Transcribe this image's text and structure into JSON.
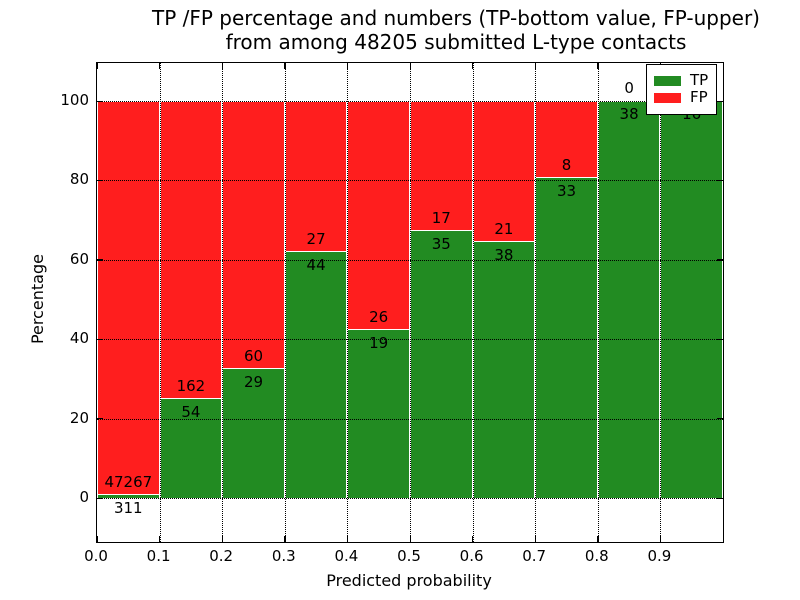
{
  "title": {
    "line1": "TP /FP percentage and numbers (TP-bottom value, FP-upper)",
    "line2": "from among 48205 submitted L-type contacts"
  },
  "axes": {
    "xlabel": "Predicted probability",
    "ylabel": "Percentage",
    "x_tick_labels": [
      "0.0",
      "0.1",
      "0.2",
      "0.3",
      "0.4",
      "0.5",
      "0.6",
      "0.7",
      "0.8",
      "0.9"
    ],
    "y_tick_labels": [
      "0",
      "20",
      "40",
      "60",
      "80",
      "100"
    ]
  },
  "legend": {
    "items": [
      {
        "label": "TP",
        "color": "#228B22"
      },
      {
        "label": "FP",
        "color": "#FF1E1E"
      }
    ]
  },
  "chart_data": {
    "type": "bar",
    "stacked": true,
    "normalized": "each bin scaled to 100%, segment heights = count/(TP+FP) of bin",
    "title": "TP /FP percentage and numbers (TP-bottom value, FP-upper) from among 48205 submitted L-type contacts",
    "xlabel": "Predicted probability",
    "ylabel": "Percentage",
    "xlim": [
      0.0,
      1.0
    ],
    "ylim": [
      0,
      100
    ],
    "bin_width": 0.1,
    "bin_starts": [
      0.0,
      0.1,
      0.2,
      0.3,
      0.4,
      0.5,
      0.6,
      0.7,
      0.8,
      0.9
    ],
    "total_submitted": 48205,
    "series": [
      {
        "name": "TP",
        "color": "#228B22",
        "counts": [
          311,
          54,
          29,
          44,
          19,
          35,
          38,
          33,
          38,
          16
        ]
      },
      {
        "name": "FP",
        "color": "#FF1E1E",
        "counts": [
          47267,
          162,
          60,
          27,
          26,
          17,
          21,
          8,
          0,
          0
        ]
      }
    ],
    "grid": true,
    "grid_style": "dotted",
    "legend_position": "upper right"
  }
}
